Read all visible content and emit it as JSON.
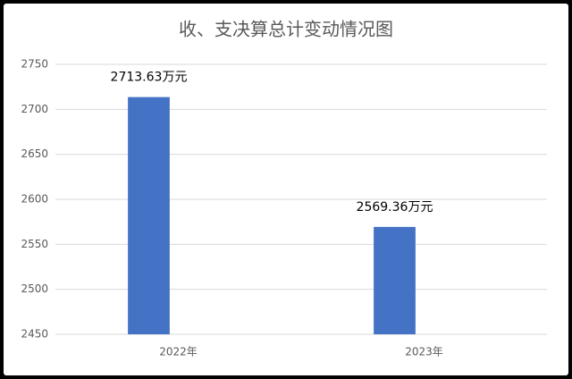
{
  "chart_data": {
    "type": "bar",
    "title": "收、支决算总计变动情况图",
    "categories": [
      "2022年",
      "2023年"
    ],
    "values": [
      2713.63,
      2569.36
    ],
    "value_labels": [
      "2713.63万元",
      "2569.36万元"
    ],
    "color": "#4472c4",
    "ylim": [
      2450,
      2750
    ],
    "yticks": [
      2450,
      2500,
      2550,
      2600,
      2650,
      2700,
      2750
    ],
    "grid": true
  }
}
